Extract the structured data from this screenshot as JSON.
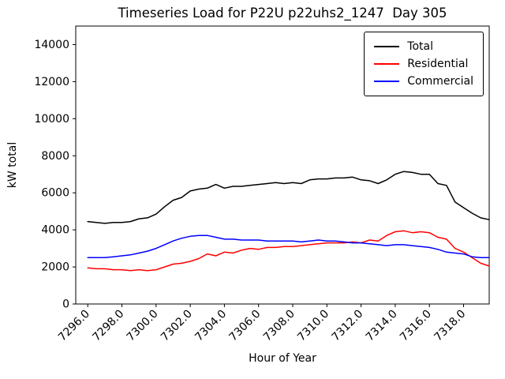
{
  "chart_data": {
    "type": "line",
    "title": "Timeseries Load for P22U p22uhs2_1247  Day 305",
    "xlabel": "Hour of Year",
    "ylabel": "kW total",
    "xlim": [
      7295.3,
      7319.5
    ],
    "ylim": [
      0,
      15000
    ],
    "grid": false,
    "legend_position": "upper right",
    "x": [
      7296,
      7296.5,
      7297,
      7297.5,
      7298,
      7298.5,
      7299,
      7299.5,
      7300,
      7300.5,
      7301,
      7301.5,
      7302,
      7302.5,
      7303,
      7303.5,
      7304,
      7304.5,
      7305,
      7305.5,
      7306,
      7306.5,
      7307,
      7307.5,
      7308,
      7308.5,
      7309,
      7309.5,
      7310,
      7310.5,
      7311,
      7311.5,
      7312,
      7312.5,
      7313,
      7313.5,
      7314,
      7314.5,
      7315,
      7315.5,
      7316,
      7316.5,
      7317,
      7317.5,
      7318,
      7318.5,
      7319,
      7319.5
    ],
    "series": [
      {
        "name": "Total",
        "color": "#000000",
        "values": [
          4450,
          4400,
          4350,
          4400,
          4400,
          4450,
          4600,
          4650,
          4850,
          5250,
          5600,
          5750,
          6100,
          6200,
          6250,
          6450,
          6250,
          6350,
          6350,
          6400,
          6450,
          6500,
          6550,
          6500,
          6550,
          6500,
          6700,
          6750,
          6750,
          6800,
          6800,
          6850,
          6700,
          6650,
          6500,
          6700,
          7000,
          7150,
          7100,
          7000,
          7000,
          6500,
          6400,
          5500,
          5200,
          4900,
          4650,
          4550
        ]
      },
      {
        "name": "Residential",
        "color": "#ff0000",
        "values": [
          1950,
          1900,
          1900,
          1850,
          1850,
          1800,
          1850,
          1800,
          1850,
          2000,
          2150,
          2200,
          2300,
          2450,
          2700,
          2600,
          2800,
          2750,
          2900,
          3000,
          2950,
          3050,
          3050,
          3100,
          3100,
          3150,
          3200,
          3250,
          3300,
          3300,
          3300,
          3350,
          3300,
          3450,
          3400,
          3700,
          3900,
          3950,
          3850,
          3900,
          3850,
          3600,
          3500,
          3000,
          2800,
          2500,
          2200,
          2050
        ]
      },
      {
        "name": "Commercial",
        "color": "#0000ff",
        "values": [
          2500,
          2500,
          2500,
          2550,
          2600,
          2650,
          2750,
          2850,
          3000,
          3200,
          3400,
          3550,
          3650,
          3700,
          3700,
          3600,
          3500,
          3500,
          3450,
          3450,
          3450,
          3400,
          3400,
          3400,
          3400,
          3350,
          3400,
          3450,
          3400,
          3400,
          3350,
          3300,
          3300,
          3250,
          3200,
          3150,
          3200,
          3200,
          3150,
          3100,
          3050,
          2950,
          2800,
          2750,
          2700,
          2550,
          2500,
          2500
        ]
      }
    ],
    "xticks": {
      "values": [
        7296,
        7298,
        7300,
        7302,
        7304,
        7306,
        7308,
        7310,
        7312,
        7314,
        7316,
        7318
      ],
      "labels": [
        "7296.0",
        "7298.0",
        "7300.0",
        "7302.0",
        "7304.0",
        "7306.0",
        "7308.0",
        "7310.0",
        "7312.0",
        "7314.0",
        "7316.0",
        "7318.0"
      ]
    },
    "yticks": {
      "values": [
        0,
        2000,
        4000,
        6000,
        8000,
        10000,
        12000,
        14000
      ],
      "labels": [
        "0",
        "2000",
        "4000",
        "6000",
        "8000",
        "10000",
        "12000",
        "14000"
      ]
    }
  }
}
